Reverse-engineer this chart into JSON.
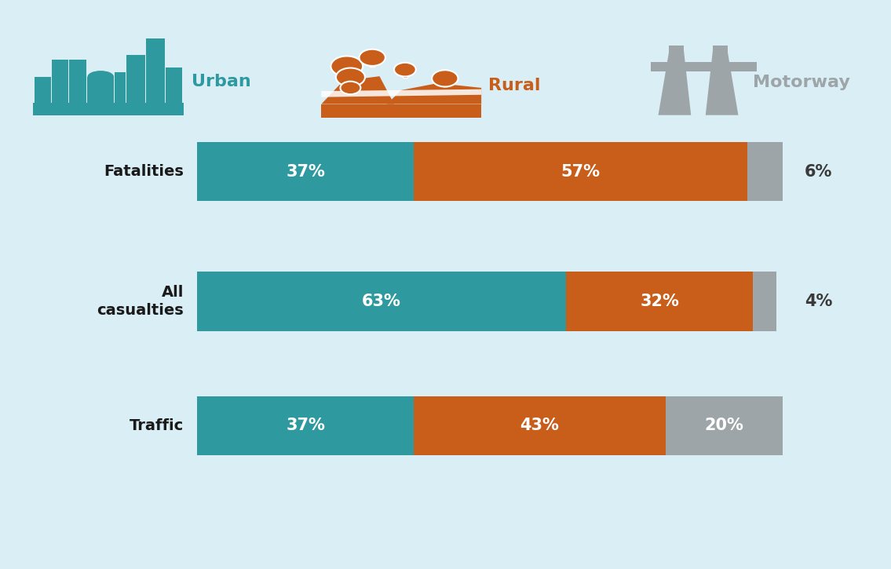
{
  "background_color": "#daeef5",
  "urban_color": "#2e9aa0",
  "rural_color": "#c85e1a",
  "motorway_color": "#9da5a8",
  "text_color_white": "#ffffff",
  "text_color_dark": "#3a3a3a",
  "label_color": "#1a1a1a",
  "categories": [
    "Fatalities",
    "All\ncasualties",
    "Traffic"
  ],
  "urban_values": [
    37,
    63,
    37
  ],
  "rural_values": [
    57,
    32,
    43
  ],
  "motorway_values": [
    6,
    4,
    20
  ],
  "motorway_inside": [
    false,
    false,
    true
  ],
  "urban_label": "Urban",
  "rural_label": "Rural",
  "motorway_label": "Motorway",
  "figsize": [
    11.35,
    7.25
  ],
  "dpi": 100
}
